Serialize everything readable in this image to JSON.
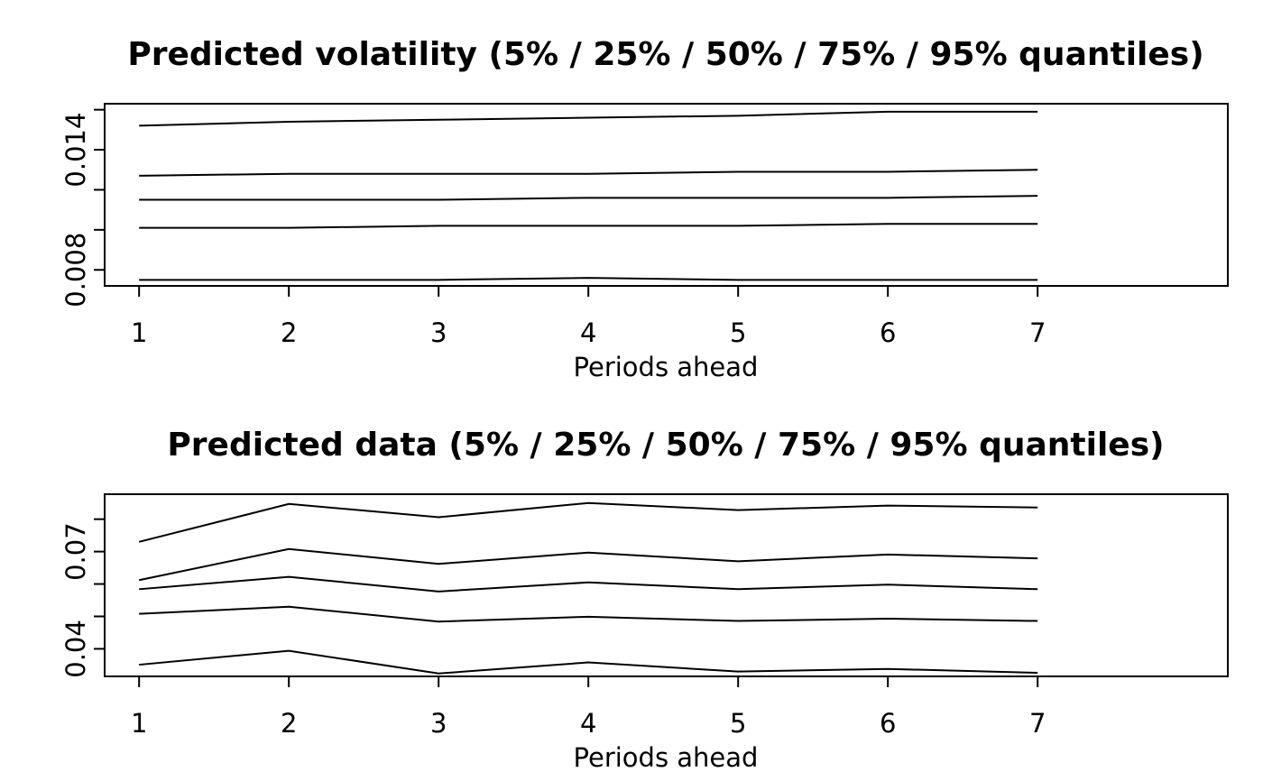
{
  "chart_data": [
    {
      "type": "line",
      "title": "Predicted volatility (5% / 25% / 50% / 75% / 95% quantiles)",
      "xlabel": "Periods ahead",
      "ylabel": "",
      "x": [
        1,
        2,
        3,
        4,
        5,
        6,
        7
      ],
      "xticks": [
        "1",
        "2",
        "3",
        "4",
        "5",
        "6",
        "7"
      ],
      "yticks": [
        "0.008",
        "0.014"
      ],
      "yticks_unlabeled": [
        0.008,
        0.01,
        0.012,
        0.014,
        0.016
      ],
      "xlim": [
        0.77,
        8.27
      ],
      "ylim": [
        0.0072,
        0.0163
      ],
      "series": [
        {
          "values": [
            0.0075,
            0.0075,
            0.0075,
            0.0076,
            0.0075,
            0.0075,
            0.0075
          ]
        },
        {
          "values": [
            0.0101,
            0.0101,
            0.0102,
            0.0102,
            0.0102,
            0.0103,
            0.0103
          ]
        },
        {
          "values": [
            0.0115,
            0.0115,
            0.0115,
            0.0116,
            0.0116,
            0.0116,
            0.0117
          ]
        },
        {
          "values": [
            0.0127,
            0.0128,
            0.0128,
            0.0128,
            0.0129,
            0.0129,
            0.013
          ]
        },
        {
          "values": [
            0.0152,
            0.0154,
            0.0155,
            0.0156,
            0.0157,
            0.0159,
            0.0159
          ]
        }
      ],
      "grid": false,
      "legend": "none"
    },
    {
      "type": "line",
      "title": "Predicted data (5% / 25% / 50% / 75% / 95% quantiles)",
      "xlabel": "Periods ahead",
      "ylabel": "",
      "x": [
        1,
        2,
        3,
        4,
        5,
        6,
        7
      ],
      "xticks": [
        "1",
        "2",
        "3",
        "4",
        "5",
        "6",
        "7"
      ],
      "yticks": [
        "0.04",
        "0.07"
      ],
      "yticks_unlabeled": [
        0.04,
        0.05,
        0.06,
        0.07,
        0.08
      ],
      "xlim": [
        0.77,
        8.27
      ],
      "ylim": [
        0.0315,
        0.0877
      ],
      "series": [
        {
          "values": [
            0.0351,
            0.0394,
            0.0324,
            0.0358,
            0.033,
            0.0338,
            0.0326
          ]
        },
        {
          "values": [
            0.0508,
            0.053,
            0.0484,
            0.0499,
            0.0486,
            0.0493,
            0.0486
          ]
        },
        {
          "values": [
            0.0584,
            0.0622,
            0.0577,
            0.0605,
            0.0584,
            0.0598,
            0.0584
          ]
        },
        {
          "values": [
            0.0612,
            0.0708,
            0.0662,
            0.0697,
            0.067,
            0.0691,
            0.0679
          ]
        },
        {
          "values": [
            0.073,
            0.0847,
            0.0806,
            0.085,
            0.0828,
            0.0842,
            0.0836
          ]
        }
      ],
      "grid": false,
      "legend": "none"
    }
  ]
}
